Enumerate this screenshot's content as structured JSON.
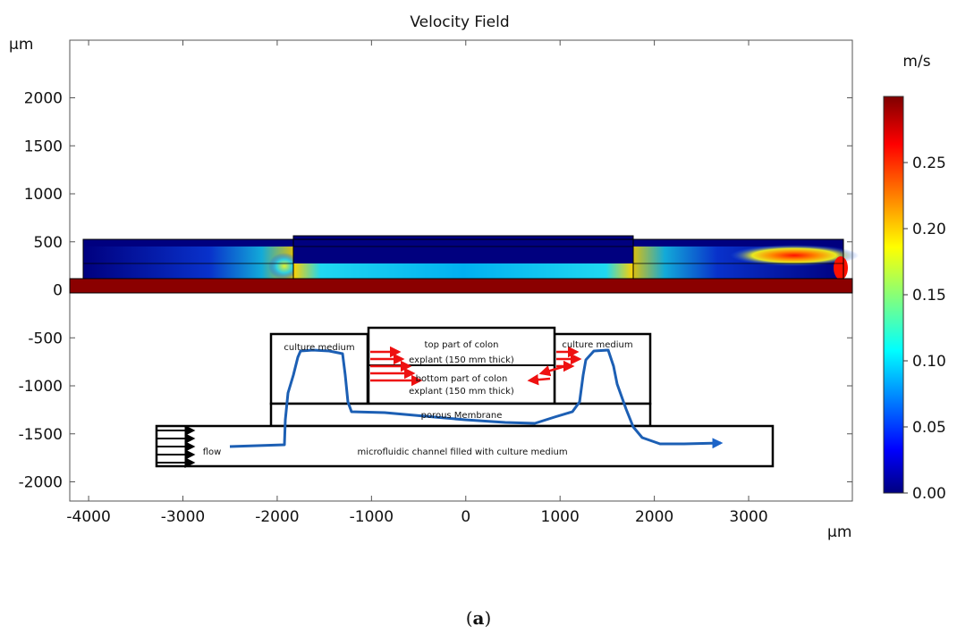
{
  "chart_data": {
    "type": "heatmap",
    "title": "Velocity Field",
    "x_unit": "μm",
    "y_unit": "μm",
    "xlim": [
      -4200,
      4100
    ],
    "ylim": [
      -2200,
      2600
    ],
    "x_ticks": [
      -4000,
      -3000,
      -2000,
      -1000,
      0,
      1000,
      2000,
      3000
    ],
    "y_ticks": [
      2000,
      1500,
      1000,
      500,
      0,
      -500,
      -1000,
      -1500,
      -2000
    ],
    "colorbar": {
      "unit": "m/s",
      "range": [
        0,
        0.3
      ],
      "ticks": [
        "0.00",
        "0.05",
        "0.10",
        "0.15",
        "0.20",
        "0.25"
      ]
    },
    "geometry": {
      "outer_channel": {
        "x": [
          -4000,
          4000
        ],
        "y": [
          130,
          570
        ]
      },
      "center_explant": {
        "x": [
          -1800,
          1800
        ],
        "y": [
          280,
          600
        ]
      },
      "membrane_bar": {
        "x": [
          -4200,
          4100
        ],
        "y": [
          0,
          150
        ]
      }
    },
    "annotations": [
      "culture medium",
      "top part of colon",
      "explant (150 mm thick)",
      "bottom part of colon",
      "explant (150 mm thick)",
      "culture medium",
      "porous Membrane",
      "flow",
      "microfluidic channel filled with culture medium"
    ]
  },
  "caption": {
    "open": "(",
    "letter": "a",
    "close": ")"
  }
}
